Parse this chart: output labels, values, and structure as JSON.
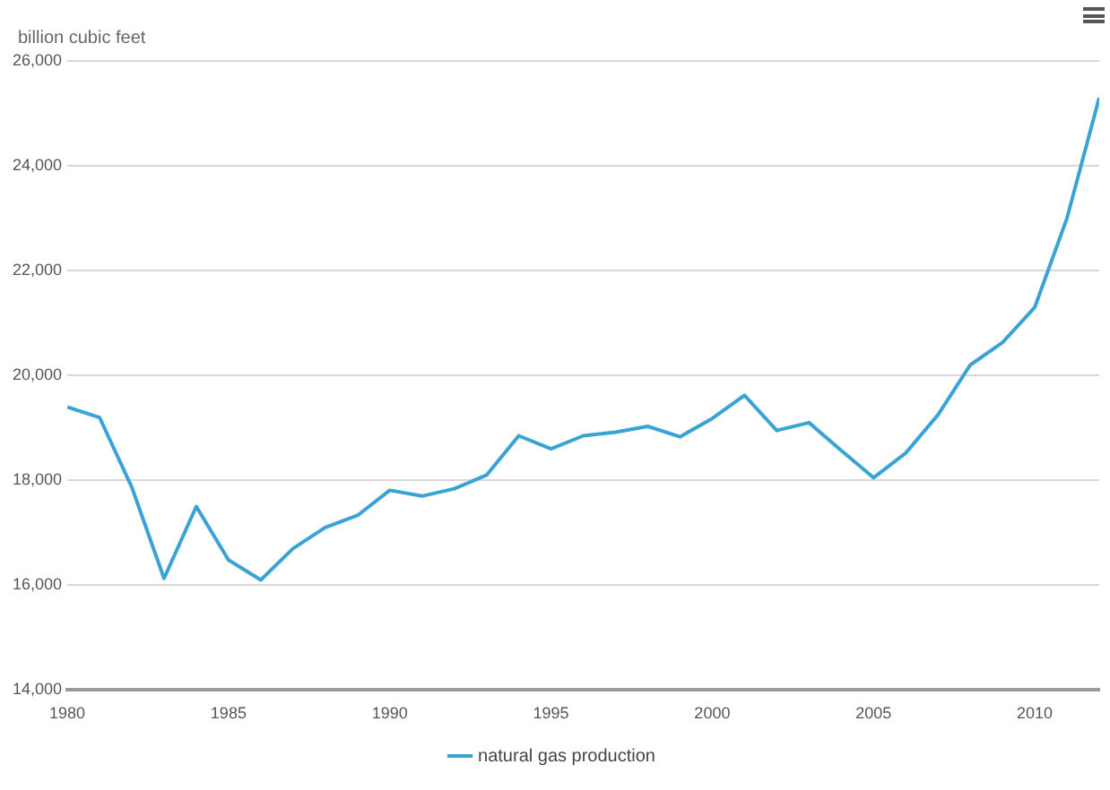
{
  "chart_data": {
    "type": "line",
    "ylabel": "billion cubic feet",
    "x": [
      1980,
      1981,
      1982,
      1983,
      1984,
      1985,
      1986,
      1987,
      1988,
      1989,
      1990,
      1991,
      1992,
      1993,
      1994,
      1995,
      1996,
      1997,
      1998,
      1999,
      2000,
      2001,
      2002,
      2003,
      2004,
      2005,
      2006,
      2007,
      2008,
      2009,
      2010,
      2011,
      2012
    ],
    "series": [
      {
        "name": "natural gas production",
        "color": "#3aa3d6",
        "values": [
          19400,
          19200,
          17870,
          16130,
          17500,
          16480,
          16100,
          16700,
          17100,
          17330,
          17810,
          17700,
          17840,
          18100,
          18850,
          18600,
          18850,
          18920,
          19030,
          18830,
          19180,
          19620,
          18950,
          19100,
          18570,
          18050,
          18520,
          19250,
          20200,
          20630,
          21300,
          23000,
          25300
        ]
      }
    ],
    "xlim": [
      1980,
      2012
    ],
    "xticks": [
      1980,
      1985,
      1990,
      1995,
      2000,
      2005,
      2010
    ],
    "ylim": [
      14000,
      26000
    ],
    "yticks": [
      {
        "value": 14000,
        "label": "14,000"
      },
      {
        "value": 16000,
        "label": "16,000"
      },
      {
        "value": 18000,
        "label": "18,000"
      },
      {
        "value": 20000,
        "label": "20,000"
      },
      {
        "value": 22000,
        "label": "22,000"
      },
      {
        "value": 24000,
        "label": "24,000"
      },
      {
        "value": 26000,
        "label": "26,000"
      }
    ],
    "grid": "y",
    "legend": "bottom",
    "marker": "none",
    "line_style": "solid"
  }
}
